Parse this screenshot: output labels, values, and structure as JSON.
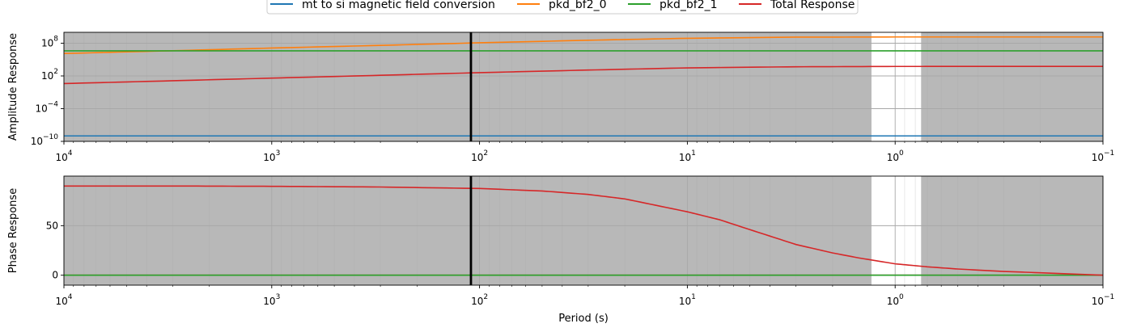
{
  "chart_data": [
    {
      "type": "line",
      "ylabel": "Amplitude Response",
      "x_scale": "log",
      "x_reversed": true,
      "xlim": [
        10000,
        0.1
      ],
      "y_scale": "log",
      "ylim": [
        1e-10,
        10000000000.0
      ],
      "x_ticks": [
        {
          "value": 10000,
          "base": "10",
          "exp": "4"
        },
        {
          "value": 1000,
          "base": "10",
          "exp": "3"
        },
        {
          "value": 100,
          "base": "10",
          "exp": "2"
        },
        {
          "value": 10,
          "base": "10",
          "exp": "1"
        },
        {
          "value": 1,
          "base": "10",
          "exp": "0"
        },
        {
          "value": 0.1,
          "base": "10",
          "exp": "−1"
        }
      ],
      "y_ticks": [
        {
          "value": 100000000.0,
          "base": "10",
          "exp": "8"
        },
        {
          "value": 100,
          "base": "10",
          "exp": "2"
        },
        {
          "value": 0.0001,
          "base": "10",
          "exp": "−4"
        },
        {
          "value": 1e-10,
          "base": "10",
          "exp": "−10"
        }
      ],
      "grid": true,
      "shaded_background": "#b8b8b8",
      "unshaded_period_range": [
        1.3,
        0.75
      ],
      "vline_period": 110,
      "series": [
        {
          "name": "mt to si magnetic field conversion",
          "color": "#1f77b4",
          "x": [
            10000,
            0.1
          ],
          "y": [
            1e-09,
            1e-09
          ]
        },
        {
          "name": "pkd_bf2_0",
          "color": "#ff7f0e",
          "x": [
            10000,
            3000,
            1000,
            300,
            100,
            30,
            10,
            3,
            1,
            0.3,
            0.1
          ],
          "y": [
            1300000.0,
            4200000.0,
            13000000.0,
            40000000.0,
            120000000.0,
            350000000.0,
            800000000.0,
            1300000000.0,
            1400000000.0,
            1400000000.0,
            1400000000.0
          ]
        },
        {
          "name": "pkd_bf2_1",
          "color": "#2ca02c",
          "x": [
            10000,
            0.1
          ],
          "y": [
            4000000.0,
            4000000.0
          ]
        },
        {
          "name": "Total Response",
          "color": "#d62728",
          "x": [
            10000,
            3000,
            1000,
            300,
            100,
            30,
            10,
            3,
            1,
            0.3,
            0.1
          ],
          "y": [
            4,
            13,
            40,
            130,
            400,
            1200,
            3000,
            4800,
            5500,
            5600,
            5600
          ]
        }
      ]
    },
    {
      "type": "line",
      "ylabel": "Phase Response",
      "xlabel": "Period (s)",
      "x_scale": "log",
      "x_reversed": true,
      "xlim": [
        10000,
        0.1
      ],
      "y_scale": "linear",
      "ylim": [
        -10,
        100
      ],
      "x_ticks": [
        {
          "value": 10000,
          "base": "10",
          "exp": "4"
        },
        {
          "value": 1000,
          "base": "10",
          "exp": "3"
        },
        {
          "value": 100,
          "base": "10",
          "exp": "2"
        },
        {
          "value": 10,
          "base": "10",
          "exp": "1"
        },
        {
          "value": 1,
          "base": "10",
          "exp": "0"
        },
        {
          "value": 0.1,
          "base": "10",
          "exp": "−1"
        }
      ],
      "y_ticks": [
        {
          "value": 0,
          "label": "0"
        },
        {
          "value": 50,
          "label": "50"
        }
      ],
      "grid": true,
      "shaded_background": "#b8b8b8",
      "unshaded_period_range": [
        1.3,
        0.75
      ],
      "vline_period": 110,
      "series": [
        {
          "name": "mt to si magnetic field conversion",
          "color": "#1f77b4",
          "x": [
            10000,
            0.1
          ],
          "y": [
            0,
            0
          ]
        },
        {
          "name": "pkd_bf2_0",
          "color": "#ff7f0e",
          "x": [
            10000,
            0.1
          ],
          "y": [
            0,
            0
          ]
        },
        {
          "name": "pkd_bf2_1",
          "color": "#2ca02c",
          "x": [
            10000,
            0.1
          ],
          "y": [
            0,
            0
          ]
        },
        {
          "name": "Total Response",
          "color": "#d62728",
          "x": [
            10000,
            3000,
            1000,
            300,
            100,
            50,
            30,
            20,
            10,
            7,
            5,
            3,
            2,
            1.5,
            1,
            0.7,
            0.5,
            0.3,
            0.2,
            0.1
          ],
          "y": [
            90,
            90,
            89.7,
            89,
            87.5,
            85,
            81.5,
            77,
            64,
            56,
            46,
            31,
            22.5,
            17.5,
            11.5,
            8.5,
            6.3,
            3.8,
            2.5,
            0
          ]
        }
      ]
    }
  ],
  "legend": {
    "placement": "top-center",
    "entries": [
      {
        "label": "mt to si magnetic field conversion",
        "color": "#1f77b4"
      },
      {
        "label": "pkd_bf2_0",
        "color": "#ff7f0e"
      },
      {
        "label": "pkd_bf2_1",
        "color": "#2ca02c"
      },
      {
        "label": "Total Response",
        "color": "#d62728"
      }
    ]
  }
}
